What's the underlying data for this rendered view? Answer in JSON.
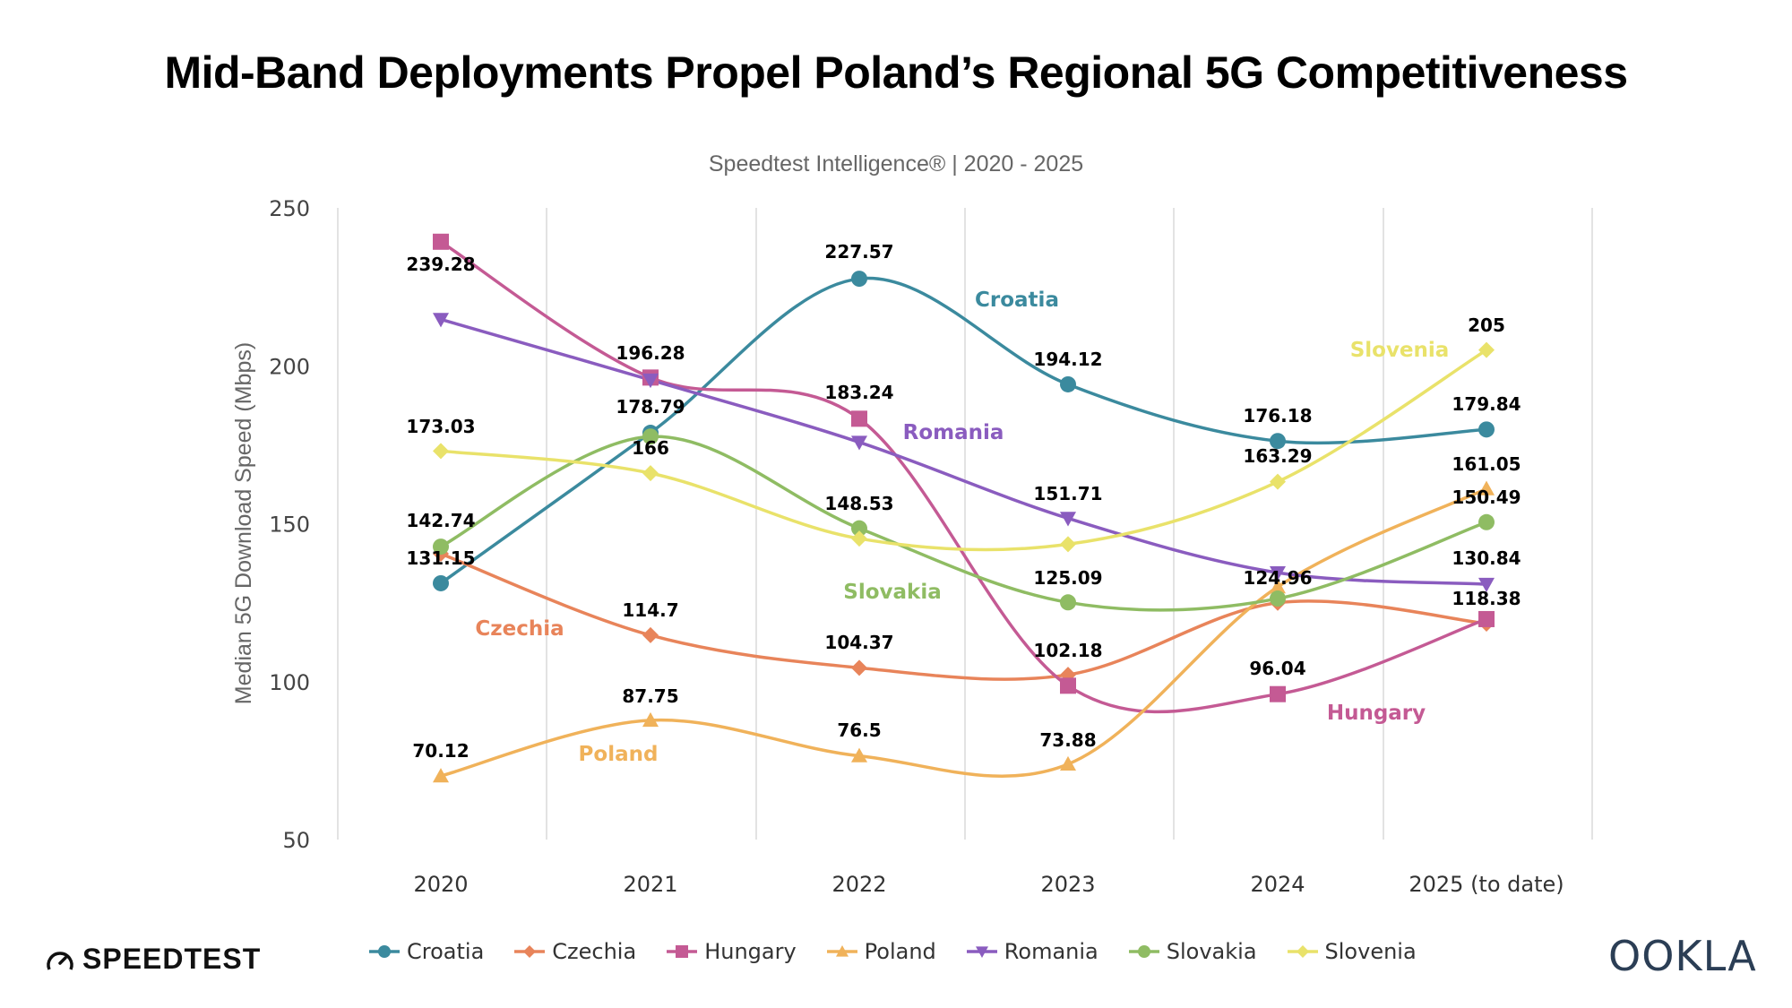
{
  "title": "Mid-Band Deployments Propel Poland’s Regional 5G Competitiveness",
  "subtitle": "Speedtest Intelligence® | 2020 - 2025",
  "branding": {
    "left_logo": "SPEEDTEST",
    "right_logo": "OOKLA"
  },
  "chart_data": {
    "type": "line",
    "smooth": true,
    "ylabel": "Median 5G Download Speed (Mbps)",
    "xlabel": "",
    "categories": [
      "2020",
      "2021",
      "2022",
      "2023",
      "2024",
      "2025 (to date)"
    ],
    "ylim": [
      50,
      250
    ],
    "yticks": [
      "250",
      "200",
      "150",
      "100",
      "50"
    ],
    "grid": "vertical",
    "legend": "bottom",
    "series": [
      {
        "name": "Croatia",
        "color": "#3b8a9e",
        "marker": "circle",
        "values": [
          131.15,
          178.79,
          227.57,
          194.12,
          176.18,
          179.84
        ],
        "labels": [
          "131.15",
          "178.79",
          "227.57",
          "194.12",
          "176.18",
          "179.84"
        ]
      },
      {
        "name": "Czechia",
        "color": "#e8845a",
        "marker": "diamond",
        "values": [
          140.5,
          114.7,
          104.37,
          102.18,
          124.96,
          118.38
        ],
        "labels": [
          null,
          "114.7",
          "104.37",
          "102.18",
          "124.96",
          "118.38"
        ]
      },
      {
        "name": "Hungary",
        "color": "#c45a94",
        "marker": "square",
        "values": [
          239.28,
          196.28,
          183.24,
          98.7,
          96.04,
          119.8
        ],
        "labels": [
          "239.28",
          "196.28",
          "183.24",
          null,
          "96.04",
          null
        ]
      },
      {
        "name": "Poland",
        "color": "#f0b25a",
        "marker": "triangle-up",
        "values": [
          70.12,
          87.75,
          76.5,
          73.88,
          130,
          161.05
        ],
        "labels": [
          "70.12",
          "87.75",
          "76.5",
          "73.88",
          null,
          "161.05"
        ]
      },
      {
        "name": "Romania",
        "color": "#8a5cbf",
        "marker": "triangle-down",
        "values": [
          214.7,
          195.5,
          175.8,
          151.71,
          134.5,
          130.84
        ],
        "labels": [
          null,
          null,
          null,
          "151.71",
          null,
          "130.84"
        ]
      },
      {
        "name": "Slovakia",
        "color": "#8fbc63",
        "marker": "circle",
        "values": [
          142.74,
          177.6,
          148.53,
          125.09,
          126.3,
          150.49
        ],
        "labels": [
          "142.74",
          null,
          "148.53",
          "125.09",
          null,
          "150.49"
        ]
      },
      {
        "name": "Slovenia",
        "color": "#e9e26a",
        "marker": "diamond",
        "values": [
          173.03,
          166,
          145.3,
          143.5,
          163.29,
          205
        ],
        "labels": [
          "173.03",
          "166",
          null,
          null,
          "163.29",
          "205"
        ]
      }
    ]
  }
}
